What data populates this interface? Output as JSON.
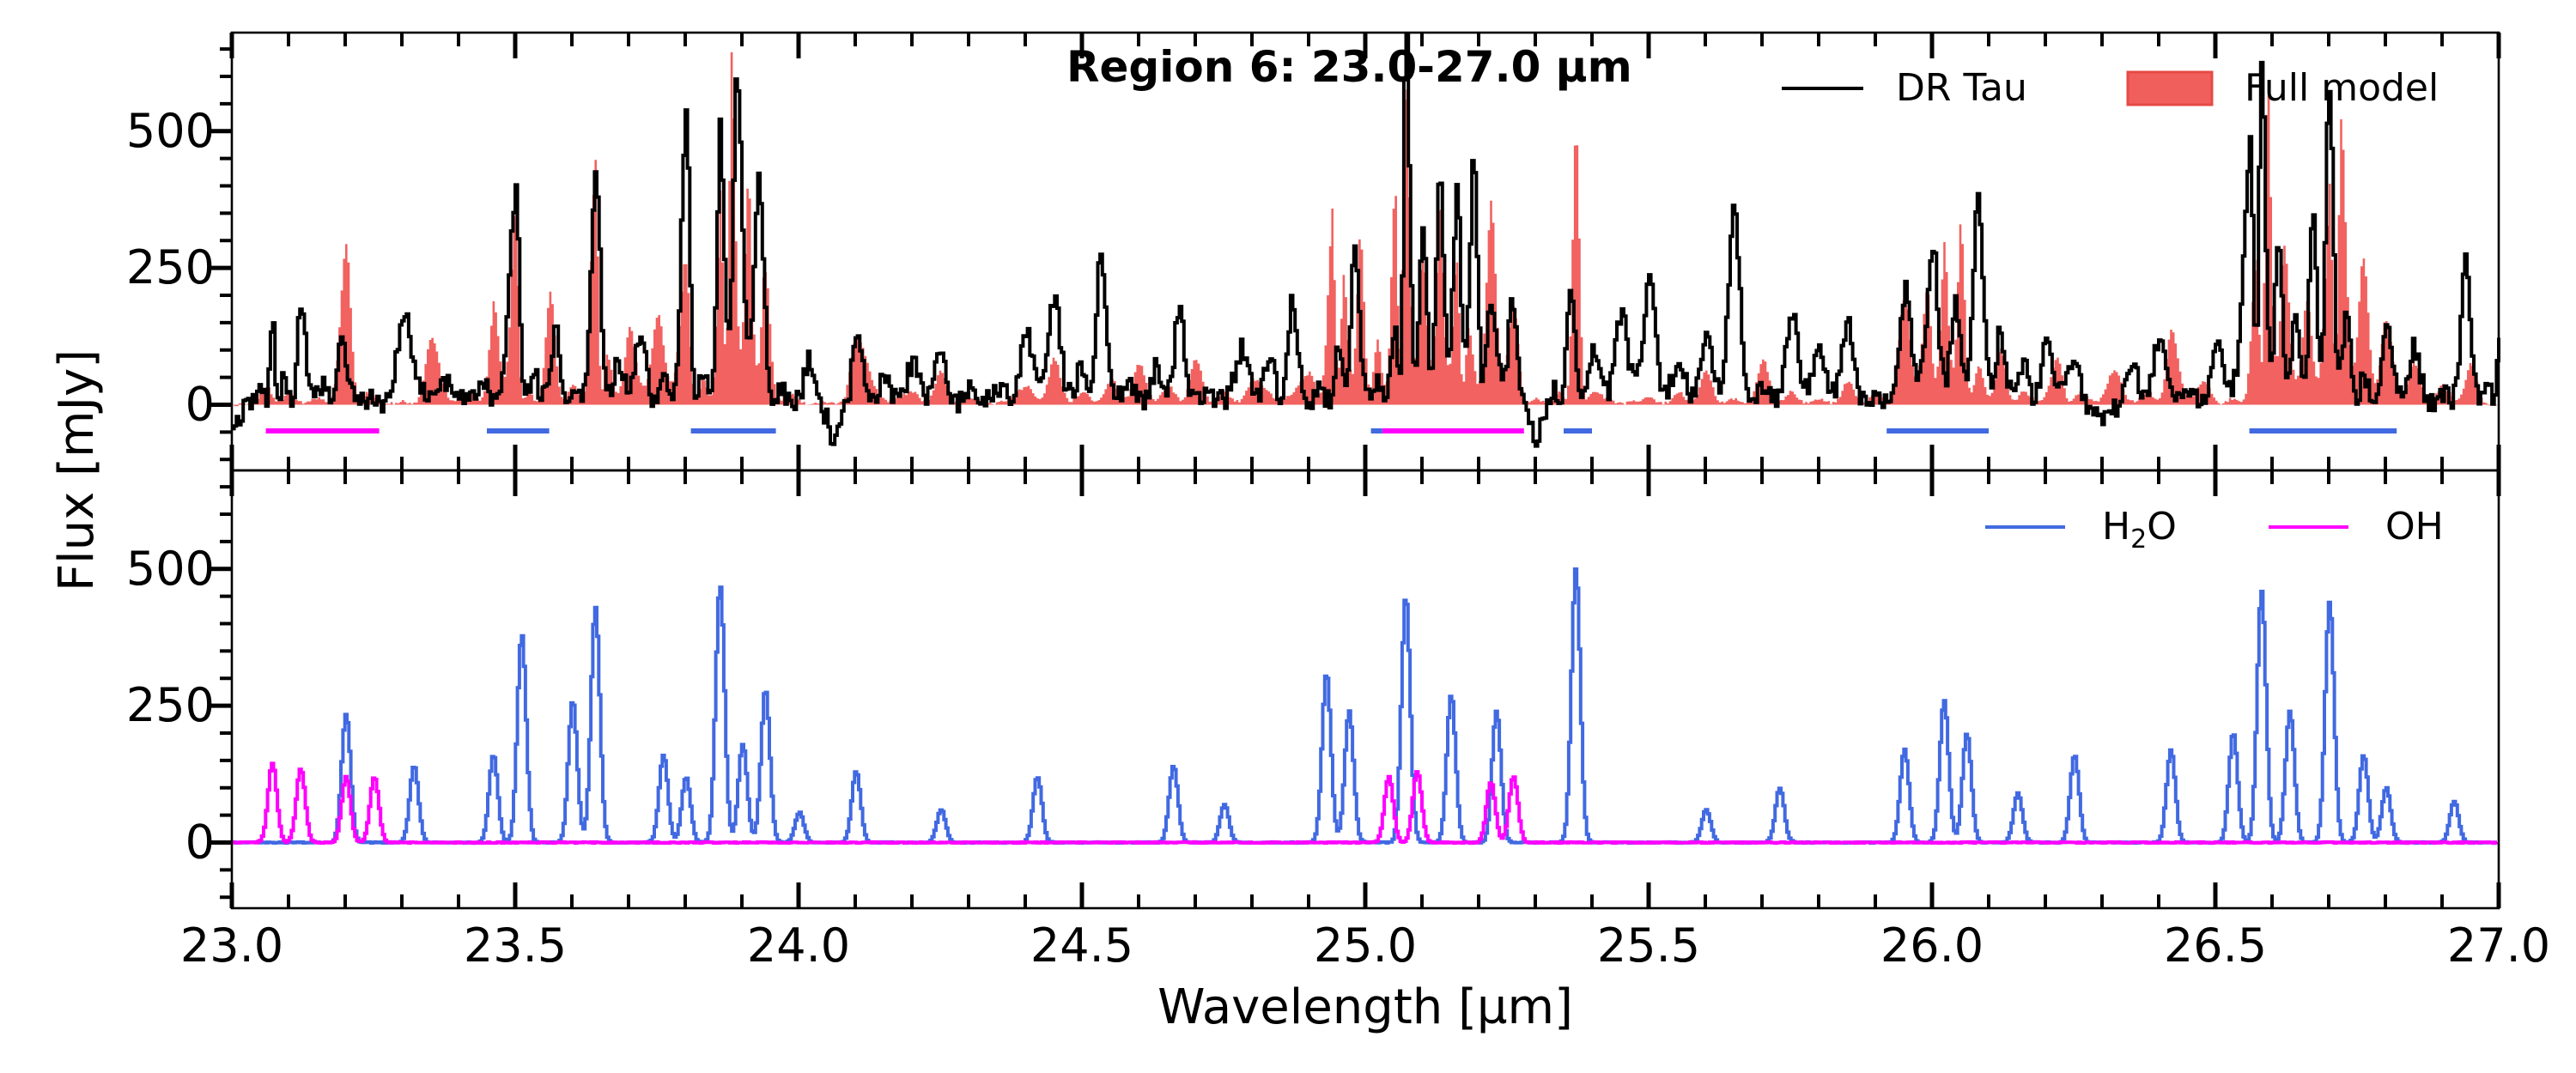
{
  "chart_data": {
    "type": "line",
    "title": "Region 6: 23.0-27.0 µm",
    "xlabel": "Wavelength [µm]",
    "ylabel": "Flux [mJy]",
    "xlim": [
      23.0,
      27.0
    ],
    "ylim": [
      -120,
      680
    ],
    "x_ticks": [
      23.0,
      23.5,
      24.0,
      24.5,
      25.0,
      25.5,
      26.0,
      26.5,
      27.0
    ],
    "x_tick_labels": [
      "23.0",
      "23.5",
      "24.0",
      "24.5",
      "25.0",
      "25.5",
      "26.0",
      "26.5",
      "27.0"
    ],
    "y_ticks": [
      0,
      250,
      500
    ],
    "y_tick_labels": [
      "0",
      "250",
      "500"
    ],
    "grid": false,
    "panels": [
      {
        "name": "top",
        "legend_position": "top-right",
        "series": [
          {
            "name": "DR Tau",
            "kind": "step-line",
            "color": "#000000",
            "x": [
              23.0,
              23.05,
              23.07,
              23.09,
              23.12,
              23.16,
              23.19,
              23.25,
              23.3,
              23.38,
              23.44,
              23.5,
              23.53,
              23.57,
              23.6,
              23.64,
              23.68,
              23.72,
              23.76,
              23.8,
              23.83,
              23.86,
              23.89,
              23.93,
              23.97,
              24.02,
              24.06,
              24.1,
              24.15,
              24.2,
              24.25,
              24.3,
              24.35,
              24.4,
              24.45,
              24.5,
              24.53,
              24.58,
              24.63,
              24.67,
              24.72,
              24.78,
              24.83,
              24.87,
              24.92,
              24.95,
              24.98,
              25.02,
              25.05,
              25.07,
              25.1,
              25.13,
              25.16,
              25.19,
              25.22,
              25.26,
              25.3,
              25.33,
              25.36,
              25.4,
              25.45,
              25.5,
              25.55,
              25.6,
              25.65,
              25.7,
              25.75,
              25.8,
              25.85,
              25.9,
              25.95,
              26.0,
              26.04,
              26.08,
              26.12,
              26.16,
              26.2,
              26.25,
              26.3,
              26.35,
              26.4,
              26.45,
              26.5,
              26.56,
              26.58,
              26.61,
              26.64,
              26.67,
              26.7,
              26.73,
              26.76,
              26.8,
              26.85,
              26.9,
              26.94,
              26.98,
              27.0
            ],
            "y": [
              -30,
              30,
              150,
              40,
              185,
              30,
              120,
              10,
              160,
              40,
              30,
              380,
              50,
              130,
              20,
              420,
              70,
              130,
              40,
              520,
              60,
              430,
              540,
              370,
              20,
              90,
              -50,
              120,
              40,
              70,
              90,
              20,
              30,
              120,
              180,
              60,
              270,
              30,
              60,
              160,
              20,
              90,
              70,
              180,
              20,
              90,
              290,
              40,
              140,
              650,
              260,
              380,
              330,
              420,
              170,
              180,
              -60,
              20,
              200,
              80,
              150,
              210,
              70,
              110,
              340,
              30,
              160,
              90,
              140,
              20,
              180,
              260,
              160,
              360,
              120,
              60,
              110,
              80,
              -20,
              70,
              110,
              20,
              100,
              420,
              580,
              260,
              140,
              310,
              560,
              160,
              40,
              120,
              90,
              20,
              270,
              40,
              130
            ]
          },
          {
            "name": "Full model",
            "kind": "filled-step",
            "color": "#f0514f",
            "x": [
              23.0,
              23.06,
              23.1,
              23.15,
              23.2,
              23.24,
              23.3,
              23.35,
              23.42,
              23.46,
              23.5,
              23.52,
              23.56,
              23.6,
              23.64,
              23.66,
              23.7,
              23.75,
              23.8,
              23.83,
              23.86,
              23.88,
              23.91,
              23.94,
              23.98,
              24.05,
              24.1,
              24.2,
              24.25,
              24.3,
              24.4,
              24.45,
              24.5,
              24.55,
              24.6,
              24.65,
              24.7,
              24.75,
              24.8,
              24.9,
              24.94,
              24.96,
              24.99,
              25.02,
              25.05,
              25.07,
              25.1,
              25.13,
              25.16,
              25.18,
              25.22,
              25.26,
              25.3,
              25.34,
              25.37,
              25.4,
              25.5,
              25.55,
              25.6,
              25.65,
              25.7,
              25.75,
              25.8,
              25.85,
              25.9,
              25.95,
              25.99,
              26.02,
              26.05,
              26.08,
              26.12,
              26.16,
              26.22,
              26.26,
              26.32,
              26.38,
              26.42,
              26.48,
              26.53,
              26.57,
              26.59,
              26.62,
              26.66,
              26.7,
              26.72,
              26.76,
              26.8,
              26.85,
              26.9,
              26.95,
              27.0
            ],
            "y": [
              0,
              30,
              20,
              10,
              290,
              20,
              5,
              120,
              20,
              160,
              360,
              20,
              200,
              30,
              430,
              80,
              120,
              140,
              250,
              40,
              330,
              580,
              350,
              240,
              20,
              5,
              120,
              20,
              60,
              10,
              30,
              80,
              20,
              40,
              70,
              30,
              80,
              20,
              40,
              50,
              320,
              200,
              280,
              100,
              360,
              560,
              250,
              330,
              240,
              120,
              340,
              180,
              10,
              20,
              500,
              20,
              10,
              20,
              60,
              10,
              80,
              20,
              10,
              40,
              20,
              190,
              180,
              250,
              300,
              60,
              100,
              20,
              80,
              20,
              60,
              20,
              130,
              40,
              10,
              250,
              550,
              260,
              160,
              340,
              480,
              240,
              140,
              70,
              30,
              70,
              0
            ]
          }
        ],
        "line_segments": [
          {
            "series": "OH",
            "color": "#ff00ff",
            "start": 23.06,
            "end": 23.26
          },
          {
            "series": "H2O",
            "color": "#4169e1",
            "start": 23.45,
            "end": 23.56
          },
          {
            "series": "H2O",
            "color": "#4169e1",
            "start": 23.81,
            "end": 23.96
          },
          {
            "series": "H2O",
            "color": "#4169e1",
            "start": 25.01,
            "end": 25.03
          },
          {
            "series": "OH",
            "color": "#ff00ff",
            "start": 25.03,
            "end": 25.28
          },
          {
            "series": "H2O",
            "color": "#4169e1",
            "start": 25.35,
            "end": 25.4
          },
          {
            "series": "H2O",
            "color": "#4169e1",
            "start": 25.92,
            "end": 26.1
          },
          {
            "series": "H2O",
            "color": "#4169e1",
            "start": 26.56,
            "end": 26.82
          }
        ]
      },
      {
        "name": "bottom",
        "legend_position": "top-right",
        "series": [
          {
            "name": "H2O",
            "legend_label_main": "H",
            "legend_label_sub": "2",
            "legend_label_end": "O",
            "kind": "step-line",
            "color": "#4169e1",
            "peaks": [
              [
                23.2,
                235
              ],
              [
                23.32,
                140
              ],
              [
                23.46,
                160
              ],
              [
                23.51,
                380
              ],
              [
                23.6,
                260
              ],
              [
                23.64,
                430
              ],
              [
                23.76,
                160
              ],
              [
                23.8,
                120
              ],
              [
                23.86,
                470
              ],
              [
                23.9,
                180
              ],
              [
                23.94,
                280
              ],
              [
                24.0,
                55
              ],
              [
                24.1,
                130
              ],
              [
                24.25,
                60
              ],
              [
                24.42,
                120
              ],
              [
                24.66,
                140
              ],
              [
                24.75,
                70
              ],
              [
                24.93,
                310
              ],
              [
                24.97,
                240
              ],
              [
                25.07,
                450
              ],
              [
                25.15,
                270
              ],
              [
                25.23,
                240
              ],
              [
                25.37,
                500
              ],
              [
                25.6,
                60
              ],
              [
                25.73,
                100
              ],
              [
                25.95,
                170
              ],
              [
                26.02,
                260
              ],
              [
                26.06,
                200
              ],
              [
                26.15,
                90
              ],
              [
                26.25,
                160
              ],
              [
                26.42,
                170
              ],
              [
                26.53,
                200
              ],
              [
                26.58,
                460
              ],
              [
                26.63,
                240
              ],
              [
                26.7,
                440
              ],
              [
                26.76,
                160
              ],
              [
                26.8,
                100
              ],
              [
                26.92,
                75
              ]
            ]
          },
          {
            "name": "OH",
            "kind": "step-line",
            "color": "#ff00ff",
            "peaks": [
              [
                23.07,
                145
              ],
              [
                23.12,
                135
              ],
              [
                23.2,
                120
              ],
              [
                23.25,
                120
              ],
              [
                25.04,
                120
              ],
              [
                25.09,
                130
              ],
              [
                25.22,
                110
              ],
              [
                25.26,
                120
              ]
            ]
          }
        ]
      }
    ]
  }
}
